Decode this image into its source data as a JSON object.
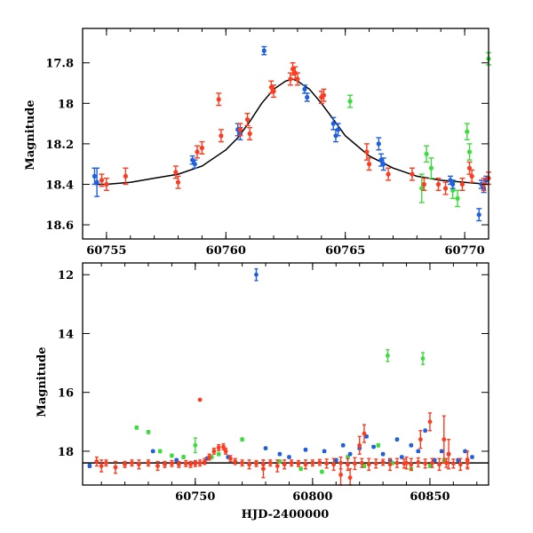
{
  "chart_data": [
    {
      "type": "scatter",
      "panel": "top",
      "title": "",
      "xlabel": "",
      "ylabel": "Magnitude",
      "xlim": [
        60754,
        60771
      ],
      "ylim": [
        18.67,
        17.63
      ],
      "y_inverted": true,
      "x_ticks": [
        60755,
        60760,
        60765,
        60770
      ],
      "x_tick_labels": [
        "60755",
        "60760",
        "60765",
        "60770"
      ],
      "y_ticks": [
        17.8,
        18,
        18.2,
        18.4,
        18.6
      ],
      "y_tick_labels": [
        "17.8",
        "18",
        "18.2",
        "18.4",
        "18.6"
      ],
      "grid": false,
      "colors": {
        "red": "#ff3b1f",
        "blue": "#1f5fe0",
        "green": "#3ddc3d",
        "model": "#000000"
      },
      "model_curve": {
        "description_free": true,
        "x": [
          60754.5,
          60755,
          60756,
          60757,
          60758,
          60759,
          60760,
          60760.5,
          60761,
          60761.5,
          60762,
          60762.5,
          60762.8,
          60763,
          60763.5,
          60764,
          60764.5,
          60765,
          60766,
          60767,
          60768,
          60769,
          60770,
          60771
        ],
        "y": [
          18.4,
          18.4,
          18.39,
          18.37,
          18.35,
          18.31,
          18.23,
          18.17,
          18.09,
          18.0,
          17.93,
          17.89,
          17.88,
          17.89,
          17.93,
          18.0,
          18.08,
          18.16,
          18.26,
          18.32,
          18.36,
          18.38,
          18.39,
          18.4
        ]
      },
      "series": [
        {
          "color": "red",
          "x": [
            60754.8,
            60755.0,
            60755.8,
            60757.9,
            60758.0,
            60758.8,
            60759.0,
            60759.7,
            60759.8,
            60760.6,
            60760.9,
            60761.0,
            60761.9,
            60762.0,
            60762.7,
            60762.8,
            60762.9,
            60763.0,
            60764.0,
            60764.1,
            60765.9,
            60766.0,
            60766.8,
            60767.8,
            60768.3,
            60768.9,
            60769.2,
            60769.9,
            60770.2,
            60770.3,
            60770.8,
            60771.0
          ],
          "y": [
            18.38,
            18.4,
            18.36,
            18.34,
            18.39,
            18.24,
            18.22,
            17.98,
            18.16,
            18.13,
            18.08,
            18.15,
            17.92,
            17.94,
            17.88,
            17.83,
            17.85,
            17.88,
            17.97,
            17.96,
            18.24,
            18.3,
            18.35,
            18.35,
            18.4,
            18.4,
            18.42,
            18.4,
            18.32,
            18.36,
            18.4,
            18.37
          ],
          "err": [
            0.03,
            0.03,
            0.04,
            0.03,
            0.03,
            0.03,
            0.03,
            0.03,
            0.03,
            0.03,
            0.03,
            0.03,
            0.03,
            0.03,
            0.03,
            0.03,
            0.03,
            0.03,
            0.03,
            0.03,
            0.04,
            0.03,
            0.03,
            0.03,
            0.03,
            0.03,
            0.03,
            0.03,
            0.03,
            0.03,
            0.03,
            0.03
          ]
        },
        {
          "color": "blue",
          "x": [
            60754.5,
            60754.6,
            60758.6,
            60758.7,
            60760.5,
            60760.6,
            60761.6,
            60763.3,
            60763.4,
            60764.5,
            60764.6,
            60764.7,
            60766.4,
            60766.5,
            60766.6,
            60769.4,
            60769.5,
            60770.6,
            60770.7,
            60770.8,
            60770.9
          ],
          "y": [
            18.36,
            18.39,
            18.28,
            18.3,
            18.13,
            18.15,
            17.74,
            17.93,
            17.97,
            18.1,
            18.16,
            18.13,
            18.2,
            18.28,
            18.3,
            18.38,
            18.4,
            18.55,
            18.4,
            18.42,
            18.38
          ],
          "err": [
            0.04,
            0.07,
            0.02,
            0.02,
            0.03,
            0.03,
            0.02,
            0.02,
            0.02,
            0.03,
            0.03,
            0.03,
            0.03,
            0.03,
            0.03,
            0.02,
            0.02,
            0.03,
            0.02,
            0.02,
            0.02
          ]
        },
        {
          "color": "green",
          "x": [
            60765.2,
            60768.2,
            60768.4,
            60768.6,
            60769.5,
            60769.7,
            60770.1,
            60770.2,
            60771.0
          ],
          "y": [
            17.99,
            18.42,
            18.25,
            18.32,
            18.43,
            18.47,
            18.14,
            18.24,
            17.78
          ],
          "err": [
            0.03,
            0.07,
            0.04,
            0.05,
            0.04,
            0.04,
            0.04,
            0.04,
            0.03
          ]
        }
      ]
    },
    {
      "type": "scatter",
      "panel": "bottom",
      "title": "",
      "xlabel": "HJD-2400000",
      "ylabel": "Magnitude",
      "xlim": [
        60702,
        60875
      ],
      "ylim": [
        19.15,
        11.6
      ],
      "y_inverted": true,
      "x_ticks": [
        60750,
        60800,
        60850
      ],
      "x_tick_labels": [
        "60750",
        "60800",
        "60850"
      ],
      "y_ticks": [
        12,
        14,
        16,
        18
      ],
      "y_tick_labels": [
        "12",
        "14",
        "16",
        "18"
      ],
      "grid": false,
      "model_level": 18.4,
      "series": [
        {
          "color": "red",
          "x": [
            60708,
            60710,
            60712,
            60716,
            60720,
            60723,
            60726,
            60730,
            60734,
            60737,
            60740,
            60743,
            60746,
            60748,
            60750,
            60752,
            60754,
            60756,
            60758,
            60760,
            60762,
            60763,
            60765,
            60767,
            60770,
            60773,
            60776,
            60779,
            60782,
            60785,
            60788,
            60791,
            60794,
            60797,
            60800,
            60803,
            60806,
            60809,
            60812,
            60815,
            60818,
            60821,
            60824,
            60827,
            60830,
            60833,
            60836,
            60839,
            60842,
            60845,
            60848,
            60851,
            60854,
            60857,
            60860,
            60863,
            60866,
            60752,
            60779,
            60812,
            60816,
            60820,
            60822,
            60840,
            60846,
            60850,
            60856,
            60858,
            60866
          ],
          "y": [
            18.35,
            18.5,
            18.4,
            18.55,
            18.45,
            18.4,
            18.45,
            18.4,
            18.5,
            18.45,
            18.42,
            18.45,
            18.42,
            18.45,
            18.42,
            18.4,
            18.35,
            18.2,
            18.0,
            17.88,
            17.85,
            18.0,
            18.25,
            18.35,
            18.4,
            18.45,
            18.42,
            18.45,
            18.4,
            18.5,
            18.45,
            18.4,
            18.42,
            18.45,
            18.4,
            18.38,
            18.42,
            18.45,
            18.4,
            18.45,
            18.42,
            18.4,
            18.45,
            18.42,
            18.38,
            18.45,
            18.4,
            18.42,
            18.45,
            18.38,
            18.42,
            18.4,
            18.45,
            18.4,
            18.42,
            18.45,
            18.4,
            16.25,
            18.6,
            18.8,
            18.9,
            17.8,
            17.4,
            18.4,
            17.6,
            17.0,
            17.6,
            18.1,
            18.3
          ],
          "err": [
            0.15,
            0.2,
            0.1,
            0.2,
            0.1,
            0.1,
            0.15,
            0.1,
            0.15,
            0.1,
            0.1,
            0.1,
            0.1,
            0.1,
            0.1,
            0.1,
            0.1,
            0.1,
            0.1,
            0.1,
            0.1,
            0.1,
            0.1,
            0.1,
            0.1,
            0.15,
            0.1,
            0.15,
            0.1,
            0.2,
            0.15,
            0.1,
            0.1,
            0.15,
            0.1,
            0.1,
            0.15,
            0.2,
            0.2,
            0.2,
            0.2,
            0.15,
            0.2,
            0.15,
            0.1,
            0.2,
            0.15,
            0.15,
            0.2,
            0.15,
            0.15,
            0.15,
            0.2,
            0.15,
            0.15,
            0.2,
            0.15,
            0.02,
            0.3,
            0.4,
            0.3,
            0.3,
            0.3,
            0.2,
            0.3,
            0.3,
            0.8,
            0.5,
            0.3
          ]
        },
        {
          "color": "blue",
          "x": [
            60705,
            60732,
            60742,
            60750,
            60755,
            60764,
            60776,
            60780,
            60786,
            60790,
            60797,
            60805,
            60810,
            60813,
            60816,
            60820,
            60823,
            60826,
            60830,
            60833,
            60836,
            60838,
            60842,
            60845,
            60848,
            60852,
            60855,
            60858,
            60862,
            60865,
            60868
          ],
          "y": [
            18.5,
            18.0,
            18.3,
            18.4,
            18.25,
            18.2,
            12.0,
            17.9,
            18.1,
            18.2,
            17.95,
            18.0,
            18.3,
            17.8,
            18.1,
            17.9,
            17.5,
            17.85,
            18.1,
            18.3,
            17.6,
            18.2,
            17.8,
            18.0,
            17.3,
            18.3,
            18.0,
            18.1,
            18.3,
            18.0,
            18.2
          ],
          "err": [
            0.05,
            0.04,
            0.04,
            0.04,
            0.04,
            0.04,
            0.2,
            0.04,
            0.04,
            0.04,
            0.04,
            0.04,
            0.04,
            0.04,
            0.04,
            0.04,
            0.04,
            0.04,
            0.04,
            0.04,
            0.04,
            0.04,
            0.04,
            0.04,
            0.04,
            0.04,
            0.04,
            0.04,
            0.04,
            0.04,
            0.04
          ]
        },
        {
          "color": "green",
          "x": [
            60725,
            60730,
            60735,
            60740,
            60745,
            60750,
            60757,
            60760,
            60770,
            60776,
            60786,
            60795,
            60804,
            60810,
            60815,
            60822,
            60828,
            60832,
            60834,
            60842,
            60847,
            60850,
            60856
          ],
          "y": [
            17.2,
            17.35,
            18.0,
            18.15,
            18.2,
            17.8,
            18.2,
            18.1,
            17.6,
            18.4,
            18.35,
            18.6,
            18.7,
            18.3,
            18.2,
            18.5,
            17.8,
            14.75,
            18.4,
            18.6,
            14.85,
            18.5,
            18.3
          ],
          "err": [
            0.05,
            0.05,
            0.05,
            0.05,
            0.05,
            0.25,
            0.05,
            0.05,
            0.05,
            0.05,
            0.05,
            0.05,
            0.05,
            0.05,
            0.05,
            0.05,
            0.05,
            0.2,
            0.05,
            0.05,
            0.2,
            0.05,
            0.05
          ]
        }
      ]
    }
  ]
}
